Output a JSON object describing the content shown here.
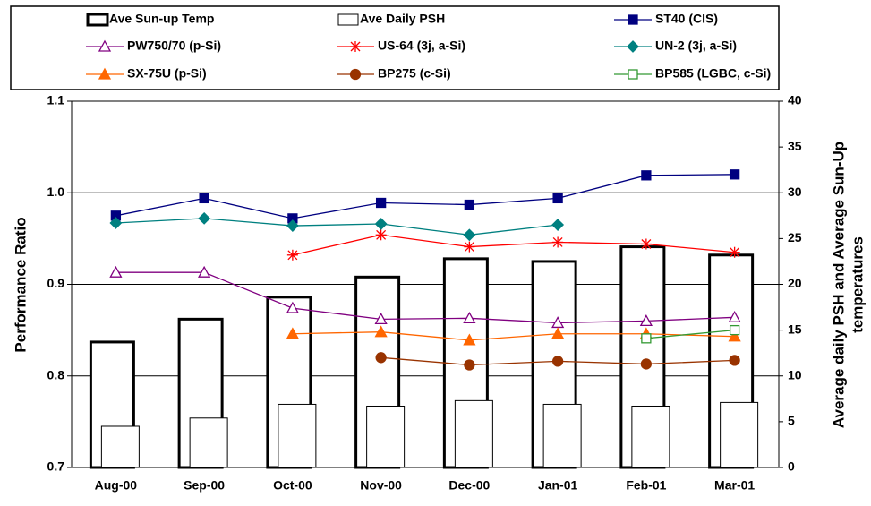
{
  "chart_data": {
    "type": "bar-line",
    "ylabel": "Performance Ratio",
    "y2label": [
      "Average daily PSH and Average Sun-Up",
      "temperatures"
    ],
    "categories": [
      "Aug-00",
      "Sep-00",
      "Oct-00",
      "Nov-00",
      "Dec-00",
      "Jan-01",
      "Feb-01",
      "Mar-01"
    ],
    "ylim": [
      0.7,
      1.1
    ],
    "yticks": [
      0.7,
      0.8,
      0.9,
      {
        "value": 1,
        "label": "1.0"
      },
      1.1
    ],
    "y2lim": [
      0,
      40
    ],
    "y2ticks": [
      0,
      5,
      10,
      15,
      20,
      25,
      30,
      35,
      40
    ],
    "grid": true,
    "series": [
      {
        "name": "Ave Sun-up Temp",
        "kind": "bar",
        "axis": "y2",
        "color": "#000000",
        "line_width": 3,
        "values": [
          13.7,
          16.2,
          18.6,
          20.8,
          22.8,
          22.5,
          24.1,
          23.2
        ]
      },
      {
        "name": "Ave Daily PSH",
        "kind": "bar",
        "axis": "y2",
        "color": "#000000",
        "line_width": 1,
        "values": [
          4.5,
          5.4,
          6.9,
          6.7,
          7.3,
          6.9,
          6.7,
          7.1
        ]
      },
      {
        "name": "ST40 (CIS)",
        "kind": "line",
        "marker": "square",
        "filled": true,
        "color": "#000080",
        "values": [
          0.975,
          0.994,
          0.972,
          0.989,
          0.987,
          0.994,
          1.019,
          1.02
        ]
      },
      {
        "name": "PW750/70 (p-Si)",
        "kind": "line",
        "marker": "triangle",
        "filled": false,
        "color": "#800080",
        "values": [
          0.913,
          0.913,
          0.874,
          0.862,
          0.863,
          0.858,
          0.86,
          0.864
        ]
      },
      {
        "name": "US-64 (3j, a-Si)",
        "kind": "line",
        "marker": "asterisk",
        "filled": false,
        "color": "#ff0000",
        "values": [
          null,
          null,
          0.932,
          0.954,
          0.941,
          0.946,
          0.944,
          0.935
        ]
      },
      {
        "name": "UN-2 (3j, a-Si)",
        "kind": "line",
        "marker": "diamond",
        "filled": true,
        "color": "#008080",
        "values": [
          0.967,
          0.972,
          0.964,
          0.966,
          0.954,
          0.965,
          null,
          null
        ]
      },
      {
        "name": "SX-75U (p-Si)",
        "kind": "line",
        "marker": "triangle",
        "filled": true,
        "color": "#ff6600",
        "values": [
          null,
          null,
          0.846,
          0.848,
          0.839,
          0.846,
          0.846,
          0.843
        ]
      },
      {
        "name": "BP275 (c-Si)",
        "kind": "line",
        "marker": "circle",
        "filled": true,
        "color": "#993300",
        "values": [
          null,
          null,
          null,
          0.82,
          0.812,
          0.816,
          0.813,
          0.817
        ]
      },
      {
        "name": "BP585 (LGBC, c-Si)",
        "kind": "line",
        "marker": "square",
        "filled": false,
        "color": "#339933",
        "values": [
          null,
          null,
          null,
          null,
          null,
          null,
          0.841,
          0.85
        ]
      }
    ]
  }
}
